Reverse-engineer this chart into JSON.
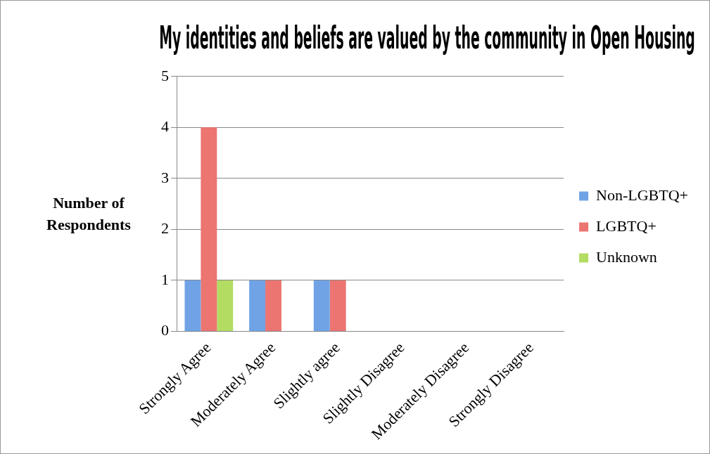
{
  "chart_data": {
    "type": "bar",
    "title": "My identities and beliefs are valued by the community in Open Housing",
    "ylabel": "Number of Respondents",
    "categories": [
      "Strongly Agree",
      "Moderately Agree",
      "Slightly agree",
      "Slightly Disagree",
      "Moderately Disagree",
      "Strongly Disagree"
    ],
    "series": [
      {
        "name": "Non-LGBTQ+",
        "color": "#6fa3e6",
        "values": [
          1,
          1,
          1,
          0,
          0,
          0
        ]
      },
      {
        "name": "LGBTQ+",
        "color": "#ec7571",
        "values": [
          4,
          1,
          1,
          0,
          0,
          0
        ]
      },
      {
        "name": "Unknown",
        "color": "#b3dc62",
        "values": [
          1,
          0,
          0,
          0,
          0,
          0
        ]
      }
    ],
    "ylim": [
      0,
      5
    ],
    "yticks": [
      0,
      1,
      2,
      3,
      4,
      5
    ],
    "grid": "y",
    "legend": "right"
  }
}
